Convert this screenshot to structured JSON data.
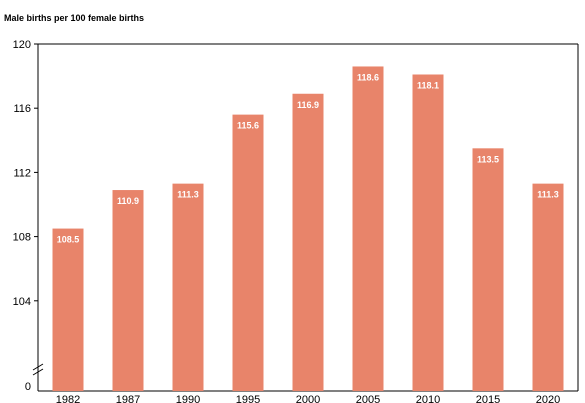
{
  "chart_data": {
    "type": "bar",
    "title": "",
    "ylabel": "Male births per 100 female births",
    "xlabel": "",
    "categories": [
      "1982",
      "1987",
      "1990",
      "1995",
      "2000",
      "2005",
      "2010",
      "2015",
      "2020"
    ],
    "values": [
      108.5,
      110.9,
      111.3,
      115.6,
      116.9,
      118.6,
      118.1,
      113.5,
      111.3
    ],
    "value_labels": [
      "108.5",
      "110.9",
      "111.3",
      "115.6",
      "116.9",
      "118.6",
      "118.1",
      "113.5",
      "111.3"
    ],
    "ylim": [
      100,
      120
    ],
    "y_ticks": [
      104,
      108,
      112,
      116,
      120
    ],
    "y_ticks_labels": [
      "104",
      "108",
      "112",
      "116",
      "120"
    ],
    "y_axis_break": true,
    "y_break_baseline_label": "0",
    "grid": false,
    "bar_color": "#e8846a"
  }
}
